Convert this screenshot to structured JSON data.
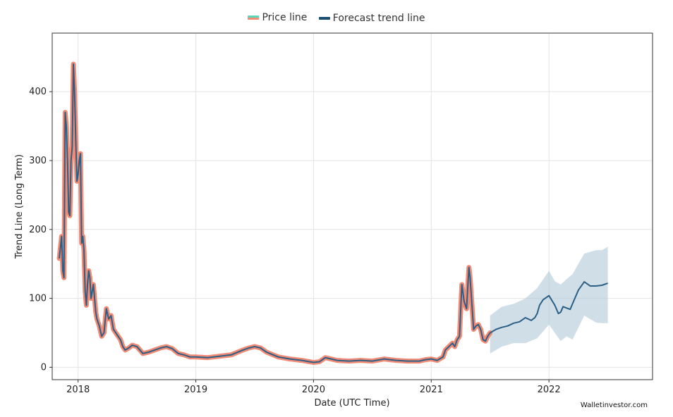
{
  "legend": {
    "price_label": "Price line",
    "forecast_label": "Forecast trend line"
  },
  "watermark": "Walletinvestor.com",
  "colors": {
    "price": "#f28b76",
    "price_swatch_top": "#5bd8b8",
    "forecast": "#2b5f85",
    "band": "#a9c2d4",
    "grid": "#e3e3e3"
  },
  "chart_data": {
    "type": "line",
    "title": "",
    "xlabel": "Date (UTC Time)",
    "ylabel": "Trend Line (Long Term)",
    "xlim": [
      2017.78,
      2022.88
    ],
    "ylim": [
      -18,
      485
    ],
    "x_ticks": [
      {
        "value": 2018.0,
        "label": "2018"
      },
      {
        "value": 2019.0,
        "label": "2019"
      },
      {
        "value": 2020.0,
        "label": "2020"
      },
      {
        "value": 2021.0,
        "label": "2021"
      },
      {
        "value": 2022.0,
        "label": "2022"
      }
    ],
    "y_ticks": [
      {
        "value": 0,
        "label": "0"
      },
      {
        "value": 100,
        "label": "100"
      },
      {
        "value": 200,
        "label": "200"
      },
      {
        "value": 300,
        "label": "300"
      },
      {
        "value": 400,
        "label": "400"
      }
    ],
    "grid": true,
    "legend_position": "top-center",
    "series": [
      {
        "name": "Price line",
        "x": [
          2017.84,
          2017.86,
          2017.87,
          2017.88,
          2017.89,
          2017.9,
          2017.91,
          2017.92,
          2017.93,
          2017.94,
          2017.95,
          2017.96,
          2017.97,
          2017.98,
          2017.99,
          2018.0,
          2018.01,
          2018.02,
          2018.03,
          2018.04,
          2018.05,
          2018.06,
          2018.07,
          2018.08,
          2018.09,
          2018.1,
          2018.11,
          2018.12,
          2018.13,
          2018.14,
          2018.15,
          2018.16,
          2018.18,
          2018.2,
          2018.22,
          2018.24,
          2018.26,
          2018.28,
          2018.3,
          2018.32,
          2018.34,
          2018.36,
          2018.38,
          2018.4,
          2018.43,
          2018.46,
          2018.5,
          2018.55,
          2018.6,
          2018.65,
          2018.7,
          2018.75,
          2018.8,
          2018.85,
          2018.9,
          2018.95,
          2019.0,
          2019.1,
          2019.2,
          2019.3,
          2019.4,
          2019.45,
          2019.5,
          2019.55,
          2019.6,
          2019.7,
          2019.8,
          2019.9,
          2020.0,
          2020.05,
          2020.1,
          2020.15,
          2020.2,
          2020.3,
          2020.4,
          2020.5,
          2020.6,
          2020.7,
          2020.8,
          2020.9,
          2020.95,
          2021.0,
          2021.05,
          2021.1,
          2021.12,
          2021.15,
          2021.18,
          2021.2,
          2021.22,
          2021.24,
          2021.26,
          2021.28,
          2021.3,
          2021.32,
          2021.33,
          2021.34,
          2021.36,
          2021.38,
          2021.4,
          2021.42,
          2021.44,
          2021.46,
          2021.48,
          2021.5
        ],
        "values": [
          158,
          190,
          140,
          130,
          370,
          350,
          300,
          225,
          220,
          300,
          320,
          440,
          400,
          330,
          270,
          280,
          300,
          310,
          180,
          190,
          170,
          110,
          90,
          120,
          140,
          130,
          100,
          110,
          120,
          100,
          80,
          70,
          60,
          45,
          50,
          85,
          70,
          75,
          55,
          50,
          45,
          40,
          30,
          25,
          28,
          32,
          30,
          20,
          22,
          25,
          28,
          30,
          27,
          20,
          18,
          15,
          15,
          14,
          16,
          18,
          25,
          28,
          30,
          28,
          22,
          15,
          12,
          10,
          7,
          8,
          14,
          12,
          10,
          9,
          10,
          9,
          12,
          10,
          9,
          9,
          11,
          12,
          10,
          15,
          25,
          30,
          35,
          30,
          40,
          45,
          120,
          95,
          85,
          145,
          130,
          105,
          55,
          60,
          62,
          55,
          40,
          38,
          45,
          50
        ]
      },
      {
        "name": "Forecast trend line",
        "x": [
          2021.5,
          2021.55,
          2021.6,
          2021.65,
          2021.7,
          2021.75,
          2021.8,
          2021.85,
          2021.88,
          2021.9,
          2021.92,
          2021.95,
          2022.0,
          2022.05,
          2022.08,
          2022.1,
          2022.12,
          2022.15,
          2022.18,
          2022.2,
          2022.25,
          2022.3,
          2022.35,
          2022.4,
          2022.45,
          2022.5
        ],
        "values": [
          50,
          55,
          58,
          60,
          64,
          66,
          72,
          68,
          72,
          78,
          90,
          98,
          104,
          90,
          78,
          80,
          88,
          86,
          84,
          92,
          112,
          124,
          118,
          118,
          119,
          122
        ]
      }
    ],
    "forecast_band": {
      "x": [
        2021.5,
        2021.6,
        2021.7,
        2021.8,
        2021.9,
        2022.0,
        2022.05,
        2022.1,
        2022.15,
        2022.2,
        2022.3,
        2022.4,
        2022.45,
        2022.5
      ],
      "upper": [
        75,
        88,
        92,
        100,
        115,
        140,
        125,
        120,
        128,
        135,
        165,
        170,
        170,
        175
      ],
      "lower": [
        20,
        30,
        35,
        35,
        42,
        62,
        50,
        38,
        45,
        40,
        75,
        65,
        64,
        64
      ]
    }
  }
}
